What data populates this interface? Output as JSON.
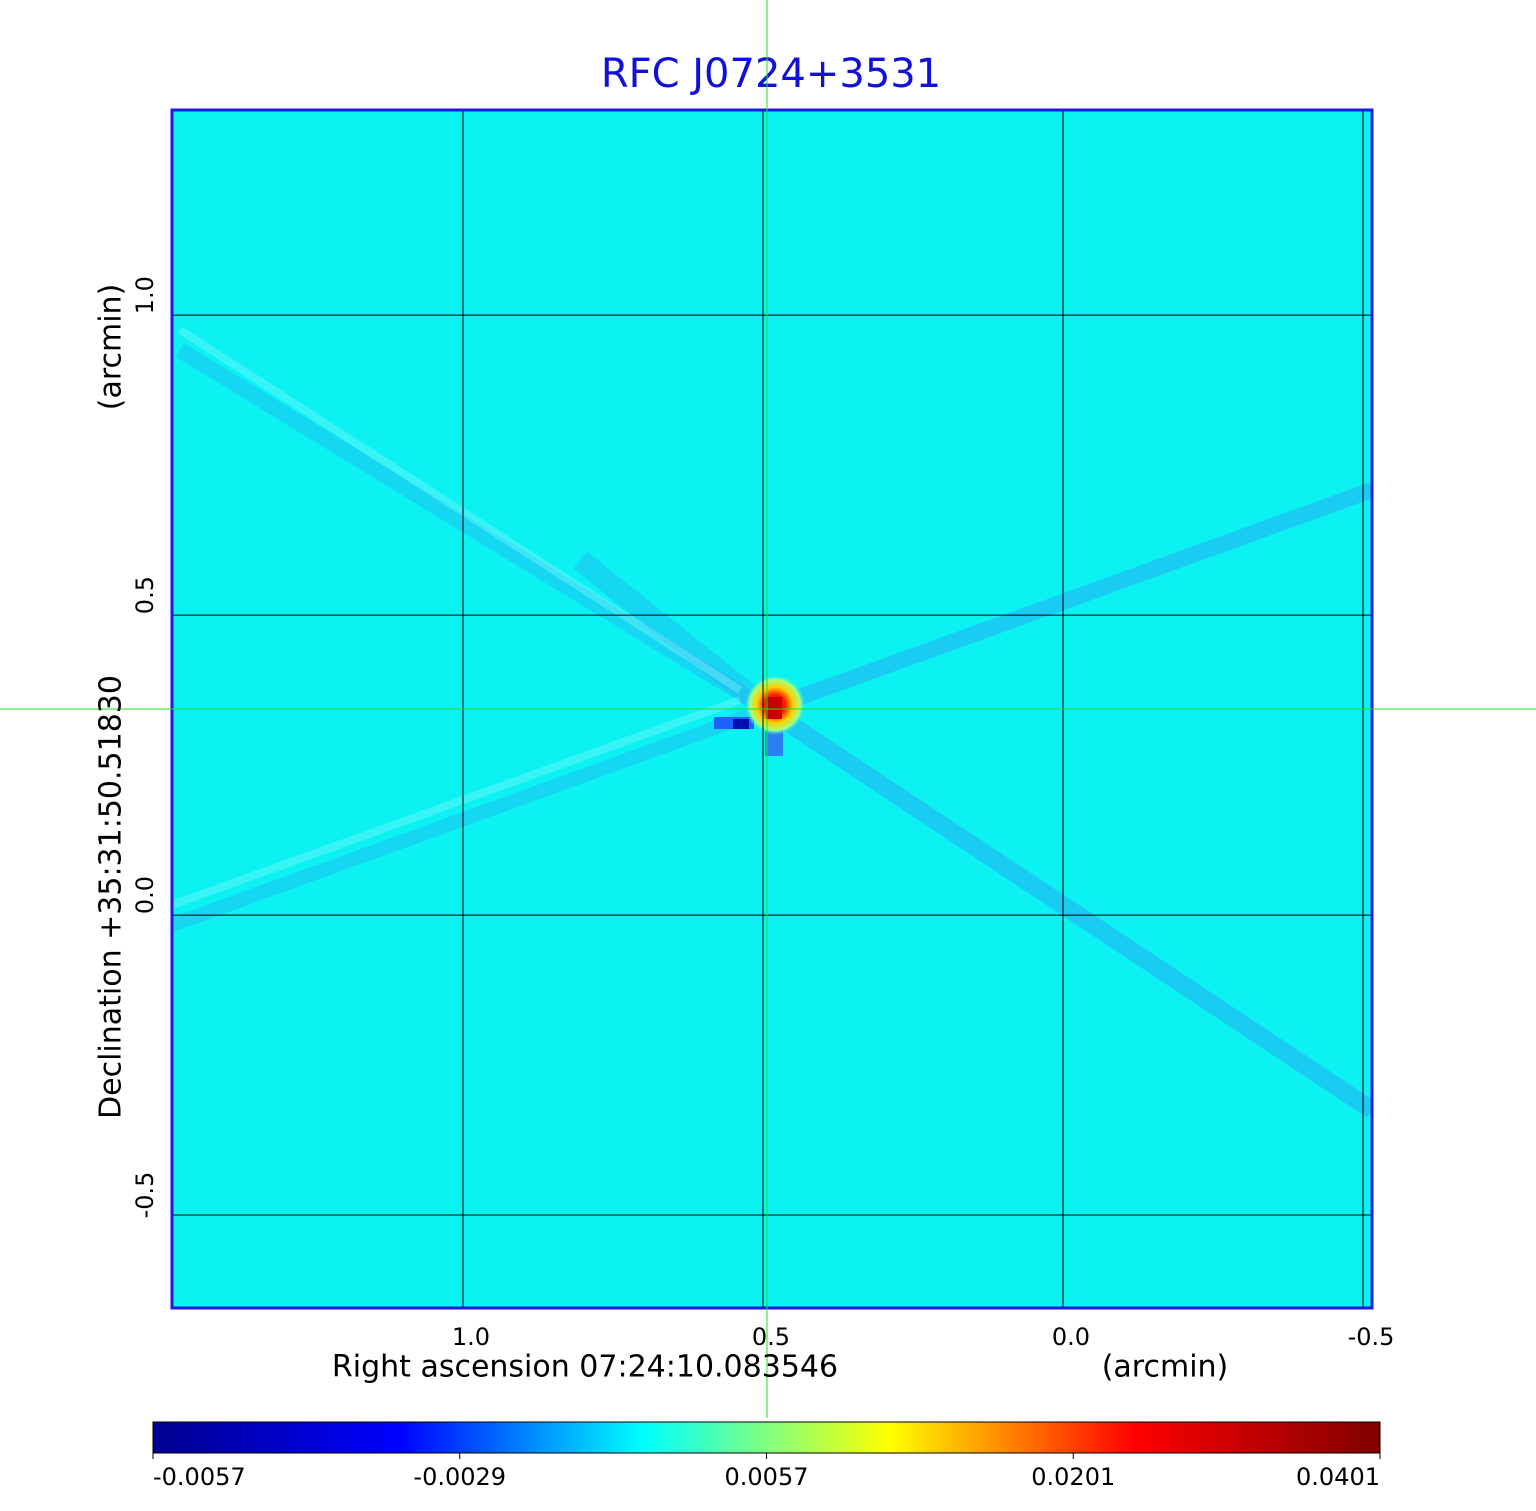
{
  "chart_data": {
    "type": "image",
    "title": "RFC J0724+3531",
    "x_label": "Right ascension  07:24:10.083546",
    "x_unit": "(arcmin)",
    "y_label": "Declination  +35:31:50.51830",
    "y_unit": "(arcmin)",
    "xlim": [
      1.485,
      -0.515
    ],
    "ylim": [
      -0.655,
      1.342
    ],
    "xticks": [
      {
        "value": 1,
        "label": "1.0"
      },
      0.5,
      {
        "value": 0,
        "label": "0.0"
      },
      -0.5
    ],
    "yticks": [
      {
        "value": 1,
        "label": "1.0"
      },
      0.5,
      {
        "value": 0,
        "label": "0.0"
      },
      -0.5
    ],
    "grid": true,
    "colorbar": {
      "colors": [
        "#00008f",
        "#0000ff",
        "#00ffff",
        "#ffff00",
        "#ff0000",
        "#800000"
      ],
      "ticks": [
        -0.0057,
        -0.0029,
        0.0057,
        0.0201,
        0.0401
      ]
    }
  }
}
